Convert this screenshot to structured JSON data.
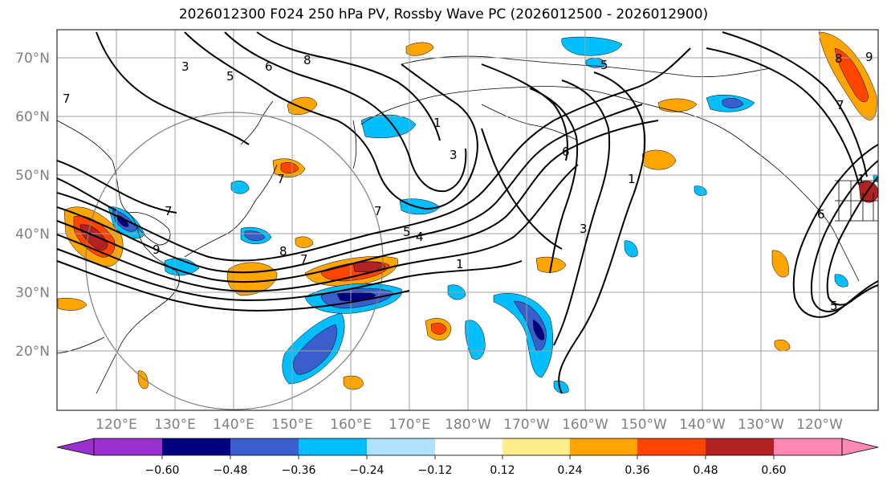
{
  "title": "2026012300 F024 250 hPa PV, Rossby Wave PC (2026012500 - 2026012900)",
  "lat_labels": [
    "70°N",
    "60°N",
    "50°N",
    "40°N",
    "30°N",
    "20°N"
  ],
  "lon_labels": [
    "120°E",
    "130°E",
    "140°E",
    "150°E",
    "160°E",
    "170°E",
    "180°W",
    "170°W",
    "160°W",
    "150°W",
    "140°W",
    "130°W",
    "120°W"
  ],
  "contour_labels": [
    "3",
    "5",
    "6",
    "8",
    "7",
    "7",
    "1",
    "3",
    "5",
    "4",
    "1",
    "9",
    "8",
    "7",
    "6",
    "5",
    "3",
    "1",
    "7",
    "7",
    "9",
    "8",
    "7",
    "6",
    "1",
    "5"
  ],
  "colorbar": {
    "ticks": [
      "−0.60",
      "−0.48",
      "−0.36",
      "−0.24",
      "−0.12",
      "0.12",
      "0.24",
      "0.36",
      "0.48",
      "0.60"
    ],
    "colors": [
      "#9b30d0",
      "#000080",
      "#3a5fcd",
      "#00bfff",
      "#b0e2ff",
      "#ffffff",
      "#ffec8b",
      "#ffa500",
      "#ff4500",
      "#b22222",
      "#ff88b4"
    ]
  },
  "colors": {
    "neg_strong": "#000080",
    "neg_mid": "#3a5fcd",
    "neg_weak": "#00bfff",
    "pos_weak": "#ffa500",
    "pos_mid": "#ff4500",
    "pos_strong": "#b22222",
    "grid": "#a0a0a0",
    "axis_label": "#808080"
  }
}
